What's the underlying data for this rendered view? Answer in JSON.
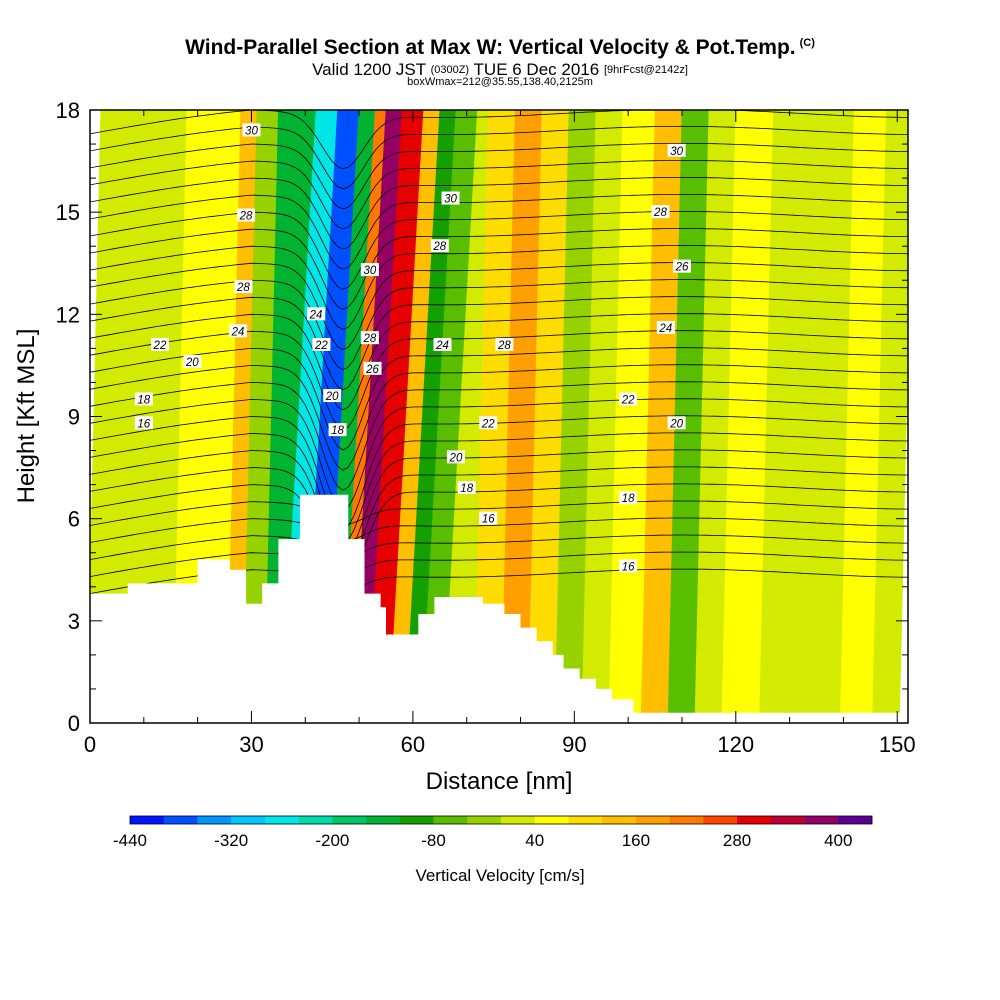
{
  "header": {
    "title": "Wind-Parallel Section at Max W: Vertical Velocity & Pot.Temp.",
    "title_mark": "(C)",
    "valid_a": "Valid 1200 JST",
    "valid_b": "(0300Z)",
    "valid_c": "TUE 6 Dec 2016",
    "valid_d": "[9hrFcst@2142z]",
    "box": "boxWmax=212@35.55,138.40,2125m"
  },
  "chart_data": {
    "type": "heatmap",
    "xlabel": "Distance [nm]",
    "ylabel": "Height [Kft MSL]",
    "xlim": [
      0,
      152
    ],
    "ylim": [
      0,
      18
    ],
    "xticks": [
      "0",
      "30",
      "60",
      "90",
      "120",
      "150"
    ],
    "yticks": [
      "0",
      "3",
      "6",
      "9",
      "12",
      "15",
      "18"
    ],
    "colorbar": {
      "title": "Vertical Velocity [cm/s]",
      "ticks": [
        "-440",
        "-320",
        "-200",
        "-80",
        "40",
        "160",
        "280",
        "400"
      ],
      "levels": [
        -440,
        -400,
        -360,
        -320,
        -280,
        -240,
        -200,
        -160,
        -120,
        -80,
        -40,
        0,
        40,
        80,
        120,
        160,
        200,
        240,
        280,
        320,
        360,
        400,
        440
      ],
      "colors": [
        "#0014ff",
        "#0050ff",
        "#0096ff",
        "#00c8ff",
        "#00e6e6",
        "#00dcaa",
        "#00c864",
        "#00b432",
        "#14a000",
        "#5abe00",
        "#96d200",
        "#d2eb00",
        "#ffff00",
        "#ffdc00",
        "#ffbe00",
        "#ffa000",
        "#ff7800",
        "#ff4600",
        "#e60000",
        "#be0032",
        "#960064",
        "#5a0096"
      ]
    },
    "velocity_bands": [
      {
        "x": 0,
        "w": 0
      },
      {
        "x": 5,
        "w": 20
      },
      {
        "x": 10,
        "w": 30
      },
      {
        "x": 16,
        "w": 20
      },
      {
        "x": 22,
        "w": 40
      },
      {
        "x": 26,
        "w": 60
      },
      {
        "x": 29,
        "w": 120
      },
      {
        "x": 33,
        "w": -40
      },
      {
        "x": 37,
        "w": -140
      },
      {
        "x": 41,
        "w": -260
      },
      {
        "x": 45,
        "w": -380
      },
      {
        "x": 48,
        "w": -160
      },
      {
        "x": 50,
        "w": 200
      },
      {
        "x": 53,
        "w": 360
      },
      {
        "x": 57,
        "w": 300
      },
      {
        "x": 60,
        "w": 140
      },
      {
        "x": 63,
        "w": -100
      },
      {
        "x": 67,
        "w": -60
      },
      {
        "x": 72,
        "w": 20
      },
      {
        "x": 77,
        "w": 80
      },
      {
        "x": 82,
        "w": 160
      },
      {
        "x": 87,
        "w": 100
      },
      {
        "x": 92,
        "w": -40
      },
      {
        "x": 97,
        "w": 30
      },
      {
        "x": 103,
        "w": 60
      },
      {
        "x": 108,
        "w": 120
      },
      {
        "x": 113,
        "w": -80
      },
      {
        "x": 118,
        "w": 30
      },
      {
        "x": 125,
        "w": 40
      },
      {
        "x": 132,
        "w": 20
      },
      {
        "x": 140,
        "w": 10
      },
      {
        "x": 146,
        "w": 60
      },
      {
        "x": 151,
        "w": 20
      }
    ],
    "terrain": [
      [
        0,
        3.8
      ],
      [
        7,
        3.8
      ],
      [
        7,
        4.1
      ],
      [
        20,
        4.1
      ],
      [
        20,
        4.8
      ],
      [
        26,
        4.8
      ],
      [
        26,
        4.5
      ],
      [
        29,
        4.5
      ],
      [
        29,
        3.5
      ],
      [
        32,
        3.5
      ],
      [
        32,
        4.1
      ],
      [
        35,
        4.1
      ],
      [
        35,
        5.4
      ],
      [
        39,
        5.4
      ],
      [
        39,
        6.7
      ],
      [
        48,
        6.7
      ],
      [
        48,
        5.4
      ],
      [
        51,
        5.4
      ],
      [
        51,
        3.8
      ],
      [
        54,
        3.8
      ],
      [
        54,
        3.4
      ],
      [
        55,
        3.4
      ],
      [
        55,
        2.6
      ],
      [
        61,
        2.6
      ],
      [
        61,
        3.2
      ],
      [
        64,
        3.2
      ],
      [
        64,
        3.7
      ],
      [
        73,
        3.7
      ],
      [
        73,
        3.5
      ],
      [
        77,
        3.5
      ],
      [
        77,
        3.2
      ],
      [
        80,
        3.2
      ],
      [
        80,
        2.8
      ],
      [
        83,
        2.8
      ],
      [
        83,
        2.4
      ],
      [
        86,
        2.4
      ],
      [
        86,
        2.0
      ],
      [
        88,
        2.0
      ],
      [
        88,
        1.6
      ],
      [
        91,
        1.6
      ],
      [
        91,
        1.3
      ],
      [
        94,
        1.3
      ],
      [
        94,
        1.0
      ],
      [
        97,
        1.0
      ],
      [
        97,
        0.7
      ],
      [
        101,
        0.7
      ],
      [
        101,
        0.3
      ],
      [
        152,
        0.3
      ]
    ],
    "isentrope_labels": [
      {
        "text": "30",
        "x": 30,
        "y": 17.4
      },
      {
        "text": "28",
        "x": 29,
        "y": 14.9
      },
      {
        "text": "28",
        "x": 28.5,
        "y": 12.8
      },
      {
        "text": "24",
        "x": 27.5,
        "y": 11.5
      },
      {
        "text": "22",
        "x": 13,
        "y": 11.1
      },
      {
        "text": "20",
        "x": 19,
        "y": 10.6
      },
      {
        "text": "18",
        "x": 10,
        "y": 9.5
      },
      {
        "text": "16",
        "x": 10,
        "y": 8.8
      },
      {
        "text": "24",
        "x": 42,
        "y": 12.0
      },
      {
        "text": "22",
        "x": 43,
        "y": 11.1
      },
      {
        "text": "20",
        "x": 45,
        "y": 9.6
      },
      {
        "text": "18",
        "x": 46,
        "y": 8.6
      },
      {
        "text": "30",
        "x": 52,
        "y": 13.3
      },
      {
        "text": "28",
        "x": 52,
        "y": 11.3
      },
      {
        "text": "26",
        "x": 52.5,
        "y": 10.4
      },
      {
        "text": "30",
        "x": 67,
        "y": 15.4
      },
      {
        "text": "28",
        "x": 65,
        "y": 14.0
      },
      {
        "text": "24",
        "x": 65.5,
        "y": 11.1
      },
      {
        "text": "28",
        "x": 77,
        "y": 11.1
      },
      {
        "text": "22",
        "x": 74,
        "y": 8.8
      },
      {
        "text": "20",
        "x": 68,
        "y": 7.8
      },
      {
        "text": "18",
        "x": 70,
        "y": 6.9
      },
      {
        "text": "16",
        "x": 74,
        "y": 6.0
      },
      {
        "text": "30",
        "x": 109,
        "y": 16.8
      },
      {
        "text": "28",
        "x": 106,
        "y": 15.0
      },
      {
        "text": "26",
        "x": 110,
        "y": 13.4
      },
      {
        "text": "24",
        "x": 107,
        "y": 11.6
      },
      {
        "text": "22",
        "x": 100,
        "y": 9.5
      },
      {
        "text": "20",
        "x": 109,
        "y": 8.8
      },
      {
        "text": "18",
        "x": 100,
        "y": 6.6
      },
      {
        "text": "16",
        "x": 100,
        "y": 4.6
      }
    ]
  }
}
